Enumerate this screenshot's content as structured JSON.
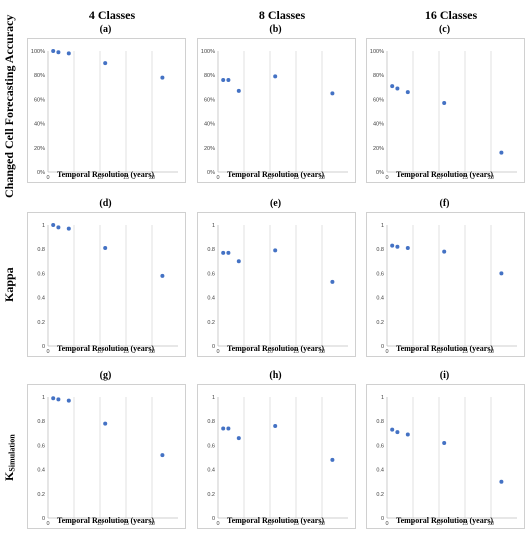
{
  "columns": [
    "4 Classes",
    "8 Classes",
    "16 Classes"
  ],
  "rows": [
    {
      "label": "Changed Cell Forecasting Accuracy",
      "sub": ""
    },
    {
      "label": "Kappa",
      "sub": ""
    },
    {
      "label": "K",
      "sub": "Simulation"
    }
  ],
  "colors": {
    "point": "#4472c4",
    "grid": "#d9d9d9",
    "border": "#d0d0d0"
  },
  "chart_data": [
    {
      "type": "scatter",
      "title": "(a)",
      "xlabel": "Temporal Resolution  (years)",
      "x": [
        1,
        2,
        4,
        11,
        22
      ],
      "y": [
        100,
        99,
        98,
        90,
        78
      ],
      "xlim": [
        0,
        25
      ],
      "ylim": [
        0,
        100
      ],
      "y_unit": "%",
      "y_ticks": [
        0,
        20,
        40,
        60,
        80,
        100
      ],
      "x_ticks": [
        0,
        5,
        10,
        15,
        20
      ],
      "grid": "vertical"
    },
    {
      "type": "scatter",
      "title": "(b)",
      "xlabel": "Temporal Resolution  (years)",
      "x": [
        1,
        2,
        4,
        11,
        22
      ],
      "y": [
        76,
        76,
        67,
        79,
        65
      ],
      "xlim": [
        0,
        25
      ],
      "ylim": [
        0,
        100
      ],
      "y_unit": "%",
      "y_ticks": [
        0,
        20,
        40,
        60,
        80,
        100
      ],
      "x_ticks": [
        0,
        5,
        10,
        15,
        20
      ],
      "grid": "vertical"
    },
    {
      "type": "scatter",
      "title": "(c)",
      "xlabel": "Temporal Resolution  (years)",
      "x": [
        1,
        2,
        4,
        11,
        22
      ],
      "y": [
        71,
        69,
        66,
        57,
        16
      ],
      "xlim": [
        0,
        25
      ],
      "ylim": [
        0,
        100
      ],
      "y_unit": "%",
      "y_ticks": [
        0,
        20,
        40,
        60,
        80,
        100
      ],
      "x_ticks": [
        0,
        5,
        10,
        15,
        20
      ],
      "grid": "vertical"
    },
    {
      "type": "scatter",
      "title": "(d)",
      "xlabel": "Temporal Resolution  (years)",
      "x": [
        1,
        2,
        4,
        11,
        22
      ],
      "y": [
        1.0,
        0.98,
        0.97,
        0.81,
        0.58
      ],
      "xlim": [
        0,
        25
      ],
      "ylim": [
        0,
        1
      ],
      "y_unit": "",
      "y_ticks": [
        0,
        0.2,
        0.4,
        0.6,
        0.8,
        1
      ],
      "x_ticks": [
        0,
        5,
        10,
        15,
        20
      ],
      "grid": "vertical"
    },
    {
      "type": "scatter",
      "title": "(e)",
      "xlabel": "Temporal Resolution  (years)",
      "x": [
        1,
        2,
        4,
        11,
        22
      ],
      "y": [
        0.77,
        0.77,
        0.7,
        0.79,
        0.53
      ],
      "xlim": [
        0,
        25
      ],
      "ylim": [
        0,
        1
      ],
      "y_unit": "",
      "y_ticks": [
        0,
        0.2,
        0.4,
        0.6,
        0.8,
        1
      ],
      "x_ticks": [
        0,
        5,
        10,
        15,
        20
      ],
      "grid": "vertical"
    },
    {
      "type": "scatter",
      "title": "(f)",
      "xlabel": "Temporal Resolution  (years)",
      "x": [
        1,
        2,
        4,
        11,
        22
      ],
      "y": [
        0.83,
        0.82,
        0.81,
        0.78,
        0.6
      ],
      "xlim": [
        0,
        25
      ],
      "ylim": [
        0,
        1
      ],
      "y_unit": "",
      "y_ticks": [
        0,
        0.2,
        0.4,
        0.6,
        0.8,
        1
      ],
      "x_ticks": [
        0,
        5,
        10,
        15,
        20
      ],
      "grid": "vertical"
    },
    {
      "type": "scatter",
      "title": "(g)",
      "xlabel": "Temporal Resolution  (years)",
      "x": [
        1,
        2,
        4,
        11,
        22
      ],
      "y": [
        0.99,
        0.98,
        0.97,
        0.78,
        0.52
      ],
      "xlim": [
        0,
        25
      ],
      "ylim": [
        0,
        1
      ],
      "y_unit": "",
      "y_ticks": [
        0,
        0.2,
        0.4,
        0.6,
        0.8,
        1
      ],
      "x_ticks": [
        0,
        5,
        10,
        15,
        20
      ],
      "grid": "vertical"
    },
    {
      "type": "scatter",
      "title": "(h)",
      "xlabel": "Temporal Resolution  (years)",
      "x": [
        1,
        2,
        4,
        11,
        22
      ],
      "y": [
        0.74,
        0.74,
        0.66,
        0.76,
        0.48
      ],
      "xlim": [
        0,
        25
      ],
      "ylim": [
        0,
        1
      ],
      "y_unit": "",
      "y_ticks": [
        0,
        0.2,
        0.4,
        0.6,
        0.8,
        1
      ],
      "x_ticks": [
        0,
        5,
        10,
        15,
        20
      ],
      "grid": "vertical"
    },
    {
      "type": "scatter",
      "title": "(i)",
      "xlabel": "Temporal Resolution  (years)",
      "x": [
        1,
        2,
        4,
        11,
        22
      ],
      "y": [
        0.73,
        0.71,
        0.69,
        0.62,
        0.3
      ],
      "xlim": [
        0,
        25
      ],
      "ylim": [
        0,
        1
      ],
      "y_unit": "",
      "y_ticks": [
        0,
        0.2,
        0.4,
        0.6,
        0.8,
        1
      ],
      "x_ticks": [
        0,
        5,
        10,
        15,
        20
      ],
      "grid": "vertical"
    }
  ]
}
